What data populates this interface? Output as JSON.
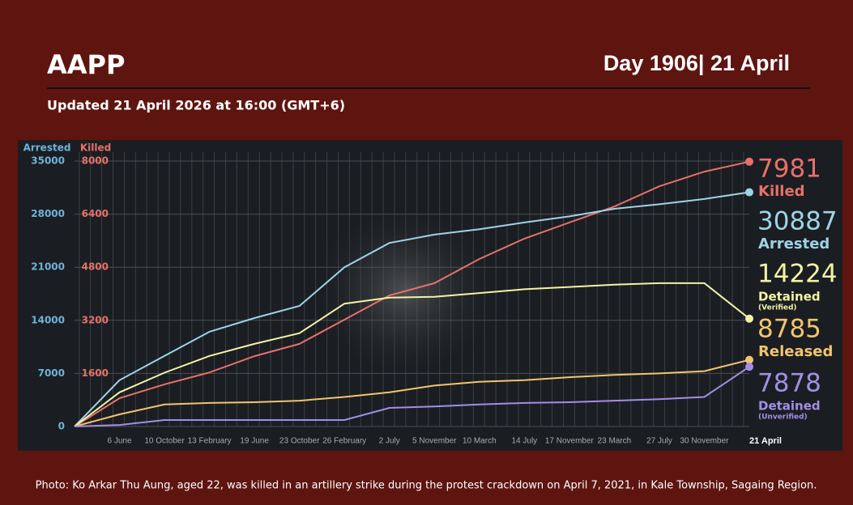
{
  "chart_data": {
    "type": "line",
    "title": "AAPP",
    "day_label": "Day 1906| 21 April",
    "subtitle": "Updated 21 April 2026 at 16:00 (GMT+6)",
    "caption": "Photo: Ko Arkar Thu Aung, aged 22, was killed in an artillery strike during the protest crackdown on April 7, 2021, in Kale Township, Sagaing Region.",
    "y_label": "Arrested",
    "y2_label": "Killed",
    "categories": [
      null,
      "6 June",
      "10 October",
      "13 February",
      "19 June",
      "23 October",
      "26 February",
      "2 July",
      "5 November",
      "10 March",
      "14 July",
      "17 November",
      "23 March",
      "27 July",
      "30 November",
      "21 April"
    ],
    "ylim": [
      0,
      35000
    ],
    "yticks": [
      0,
      7000,
      14000,
      21000,
      28000,
      35000
    ],
    "y2lim": [
      0,
      8000
    ],
    "y2ticks": [
      1600,
      3200,
      4800,
      6400,
      8000
    ],
    "grid": true,
    "series": [
      {
        "name": "Killed",
        "color": "#e8706a",
        "axis": "y2",
        "values": [
          0,
          850,
          1270,
          1630,
          2120,
          2490,
          3220,
          3950,
          4320,
          5050,
          5660,
          6150,
          6630,
          7240,
          7680,
          7981
        ]
      },
      {
        "name": "Arrested",
        "color": "#9fd3e6",
        "values": [
          0,
          6100,
          9300,
          12500,
          14300,
          15900,
          21000,
          24200,
          25300,
          26000,
          26900,
          27700,
          28700,
          29300,
          30000,
          30887
        ]
      },
      {
        "name": "Detained",
        "note": "(Verified)",
        "color": "#f3f3a6",
        "values": [
          0,
          4500,
          7100,
          9300,
          10900,
          12300,
          16200,
          17000,
          17100,
          17600,
          18100,
          18400,
          18700,
          18900,
          18900,
          14224
        ]
      },
      {
        "name": "Released",
        "color": "#f3c470",
        "values": [
          0,
          1600,
          2900,
          3100,
          3200,
          3400,
          3900,
          4500,
          5400,
          5900,
          6100,
          6500,
          6800,
          7000,
          7300,
          8785
        ]
      },
      {
        "name": "Detained",
        "note": "(Unverified)",
        "color": "#a38ee6",
        "values": [
          0,
          200,
          850,
          850,
          850,
          850,
          850,
          2450,
          2650,
          2900,
          3100,
          3200,
          3400,
          3600,
          3900,
          7878
        ]
      }
    ]
  }
}
